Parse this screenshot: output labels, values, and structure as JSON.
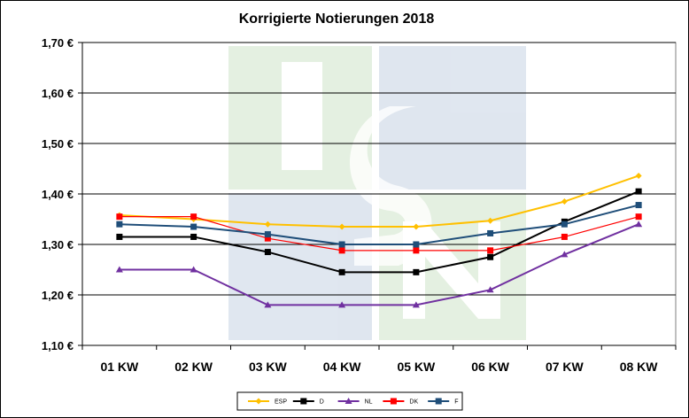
{
  "chart_data": {
    "type": "line",
    "title": "Korrigierte Notierungen 2018",
    "xlabel": "",
    "ylabel": "",
    "categories": [
      "01 KW",
      "02 KW",
      "03 KW",
      "04 KW",
      "05 KW",
      "06 KW",
      "07 KW",
      "08 KW"
    ],
    "ylim": [
      1.1,
      1.7
    ],
    "yticks": [
      1.1,
      1.2,
      1.3,
      1.4,
      1.5,
      1.6,
      1.7
    ],
    "ytick_labels": [
      "1,10 €",
      "1,20 €",
      "1,30 €",
      "1,40 €",
      "1,50 €",
      "1,60 €",
      "1,70 €"
    ],
    "grid": true,
    "legend_position": "bottom",
    "watermark_text": "ISN",
    "series": [
      {
        "name": "ESP",
        "color": "#FFC000",
        "marker": "diamond",
        "values": [
          1.358,
          1.35,
          1.34,
          1.335,
          1.335,
          1.347,
          1.385,
          1.436
        ]
      },
      {
        "name": "D",
        "color": "#000000",
        "marker": "square",
        "values": [
          1.315,
          1.315,
          1.285,
          1.245,
          1.245,
          1.275,
          1.345,
          1.405
        ]
      },
      {
        "name": "NL",
        "color": "#7030A0",
        "marker": "triangle",
        "values": [
          1.25,
          1.25,
          1.18,
          1.18,
          1.18,
          1.21,
          1.28,
          1.34
        ]
      },
      {
        "name": "DK",
        "color": "#FF0000",
        "marker": "square",
        "values": [
          1.355,
          1.355,
          1.312,
          1.288,
          1.288,
          1.288,
          1.315,
          1.355
        ]
      },
      {
        "name": "F",
        "color": "#1F4E79",
        "marker": "square",
        "values": [
          1.34,
          1.335,
          1.32,
          1.3,
          1.3,
          1.322,
          1.34,
          1.378
        ]
      }
    ]
  }
}
